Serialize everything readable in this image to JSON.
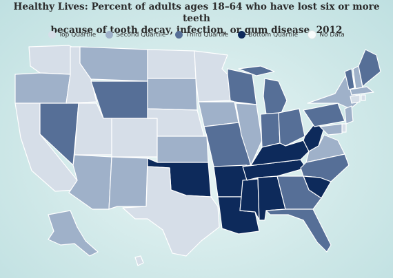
{
  "title_line1": "Healthy Lives: Percent of adults ages 18–64 who have lost six or more teeth",
  "title_line2": "because of tooth decay, infection, or gum disease, 2012",
  "legend": [
    {
      "label": "Top Quartile",
      "color": "#d6dee8"
    },
    {
      "label": "Second Quartile",
      "color": "#9fb1c9"
    },
    {
      "label": "Third Quartile",
      "color": "#566f97"
    },
    {
      "label": "Bottom Quartile",
      "color": "#0d2a5b"
    },
    {
      "label": "No Data",
      "color": "#f7fbfb"
    }
  ],
  "colors": {
    "q1": "#d6dee8",
    "q2": "#9fb1c9",
    "q3": "#566f97",
    "q4": "#0d2a5b",
    "nodata": "#f7fbfb"
  }
}
